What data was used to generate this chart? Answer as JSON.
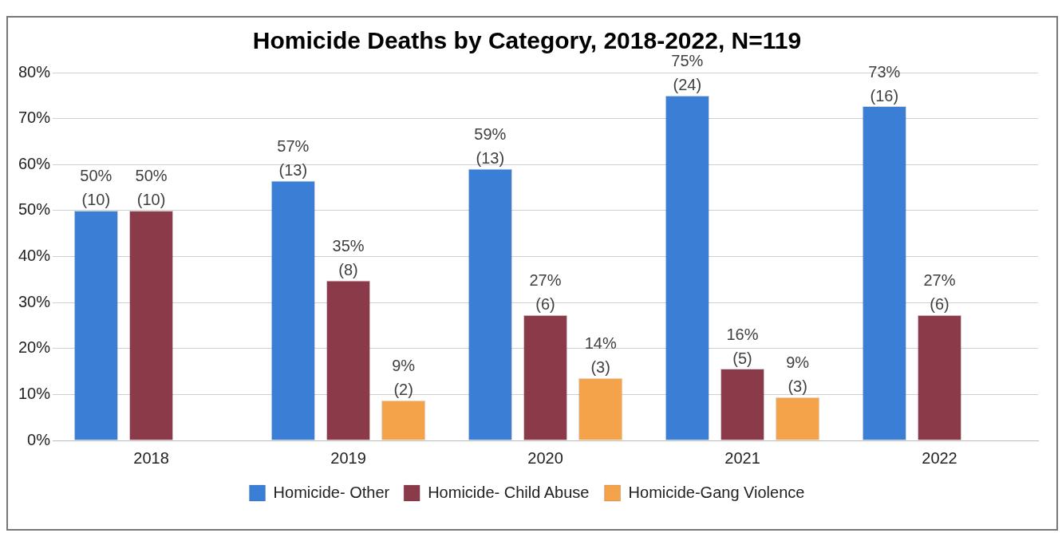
{
  "chart_data": {
    "type": "bar",
    "title": "Homicide Deaths by Category, 2018-2022, N=119",
    "categories": [
      "2018",
      "2019",
      "2020",
      "2021",
      "2022"
    ],
    "series": [
      {
        "name": "Homicide- Other",
        "color": "#3a7fd5",
        "values": [
          50,
          56.5,
          59.1,
          75,
          72.7
        ],
        "value_labels": [
          "50%\n(10)",
          "57%\n(13)",
          "59%\n(13)",
          "75%\n(24)",
          "73%\n(16)"
        ]
      },
      {
        "name": "Homicide- Child Abuse",
        "color": "#8b3a4a",
        "values": [
          50,
          34.8,
          27.3,
          15.6,
          27.3
        ],
        "value_labels": [
          "50%\n(10)",
          "35%\n(8)",
          "27%\n(6)",
          "16%\n(5)",
          "27%\n(6)"
        ]
      },
      {
        "name": "Homicide-Gang Violence",
        "color": "#f5a34a",
        "values": [
          null,
          8.7,
          13.6,
          9.4,
          null
        ],
        "value_labels": [
          null,
          "9%\n(2)",
          "14%\n(3)",
          "9%\n(3)",
          null
        ]
      }
    ],
    "ylim": [
      0,
      80
    ],
    "yticks": [
      {
        "value": 0,
        "label": "0%"
      },
      {
        "value": 10,
        "label": "10%"
      },
      {
        "value": 20,
        "label": "20%"
      },
      {
        "value": 30,
        "label": "30%"
      },
      {
        "value": 40,
        "label": "40%"
      },
      {
        "value": 50,
        "label": "50%"
      },
      {
        "value": 60,
        "label": "60%"
      },
      {
        "value": 70,
        "label": "70%"
      },
      {
        "value": 80,
        "label": "80%"
      }
    ],
    "grid": "y",
    "legend": "bottom"
  }
}
